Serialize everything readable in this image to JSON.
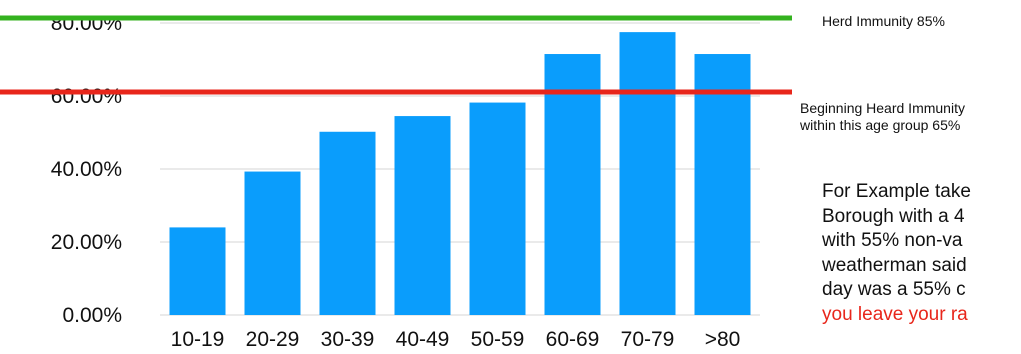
{
  "chart_data": {
    "type": "bar",
    "categories": [
      "10-19",
      "20-29",
      "30-39",
      "40-49",
      "50-59",
      "60-69",
      "70-79",
      ">80"
    ],
    "values": [
      24,
      39.3,
      50.2,
      54.5,
      58.2,
      71.5,
      77.5,
      71.5
    ],
    "ylim": [
      0,
      85
    ],
    "yticks": [
      "0.00%",
      "20.00%",
      "40.00%",
      "60.00%",
      "80.00%"
    ],
    "ytick_values": [
      0,
      20,
      40,
      60,
      80
    ],
    "grid": true,
    "bar_color": "#0a9dfc",
    "reference_lines": [
      {
        "value": 85,
        "color": "#34b21f",
        "label": "Herd Immunity 85%"
      },
      {
        "value": 65,
        "color": "#e8261b",
        "label_line1": "Beginning Heard Immunity",
        "label_line2": "within this age group 65%"
      }
    ]
  },
  "note": {
    "line1": "For Example take",
    "line2": "Borough with a 4",
    "line3": "with 55% non-va",
    "line4": "weatherman said",
    "line5": "day was a 55% c",
    "line6": "you leave your ra"
  }
}
